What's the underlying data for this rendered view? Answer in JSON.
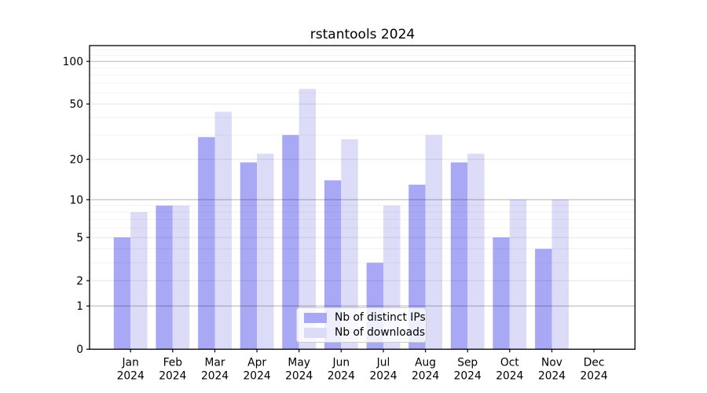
{
  "title": "rstantools 2024",
  "legend": {
    "items": [
      {
        "label": "Nb of distinct IPs",
        "color": "#a8a8f5"
      },
      {
        "label": "Nb of downloads",
        "color": "#dcdcf8"
      }
    ]
  },
  "chart_data": {
    "type": "bar",
    "title": "rstantools 2024",
    "categories": [
      "Jan 2024",
      "Feb 2024",
      "Mar 2024",
      "Apr 2024",
      "May 2024",
      "Jun 2024",
      "Jul 2024",
      "Aug 2024",
      "Sep 2024",
      "Oct 2024",
      "Nov 2024",
      "Dec 2024"
    ],
    "series": [
      {
        "name": "Nb of distinct IPs",
        "color": "#a8a8f5",
        "values": [
          5,
          9,
          29,
          19,
          30,
          14,
          3,
          13,
          19,
          5,
          4,
          0
        ]
      },
      {
        "name": "Nb of downloads",
        "color": "#dcdcf8",
        "values": [
          8,
          9,
          44,
          22,
          64,
          28,
          9,
          30,
          22,
          10,
          10,
          0
        ]
      }
    ],
    "xlabel": "",
    "ylabel": "",
    "yscale": "log1p",
    "ylim": [
      0,
      130
    ],
    "yticks": [
      0,
      1,
      2,
      5,
      10,
      20,
      50,
      100
    ],
    "major_gridlines": [
      1,
      10,
      100
    ],
    "mid_gridlines": [
      2,
      5,
      20,
      50
    ],
    "minor_gridlines": [
      3,
      4,
      6,
      7,
      8,
      9,
      30,
      40,
      60,
      70,
      80,
      90,
      110,
      120
    ],
    "grid": true,
    "legend_position": "lower center"
  }
}
